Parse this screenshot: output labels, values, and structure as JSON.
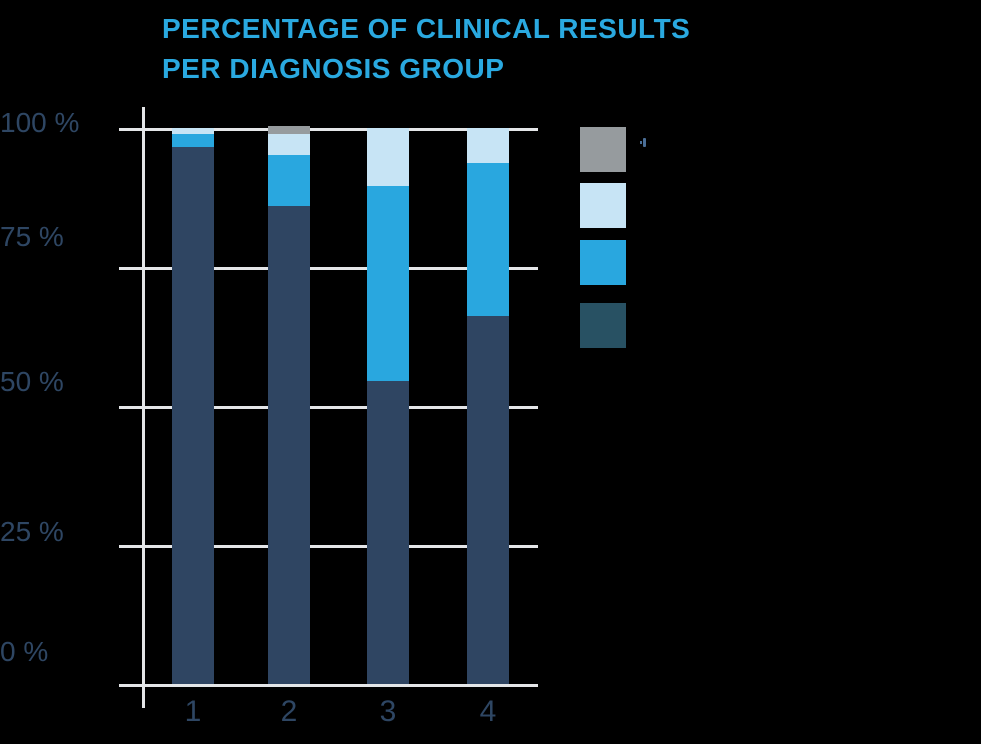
{
  "title": {
    "line1": "PERCENTAGE OF CLINICAL RESULTS",
    "line2": "PER DIAGNOSIS GROUP"
  },
  "colors": {
    "background": "#000000",
    "accent_blue": "#2AA9E0",
    "axis_text_navy": "#2E4663",
    "gridline_gray": "#E4E6E8",
    "bar_navy": "#2F4562",
    "bar_blue": "#29A7DF",
    "bar_light_blue": "#C7E4F5",
    "bar_gray": "#969B9E",
    "legend_navy": "#285163"
  },
  "legend": {
    "items": [
      {
        "name": "series-gray",
        "color_key": "bar_gray"
      },
      {
        "name": "series-light-blue",
        "color_key": "bar_light_blue"
      },
      {
        "name": "series-blue",
        "color_key": "bar_blue"
      },
      {
        "name": "series-navy",
        "color_key": "legend_navy"
      }
    ],
    "text_fragment": "ʼ"
  },
  "chart_data": {
    "type": "bar",
    "variant": "stacked-percentage",
    "title": "PERCENTAGE OF CLINICAL RESULTS PER DIAGNOSIS GROUP",
    "categories": [
      "1",
      "2",
      "3",
      "4"
    ],
    "series": [
      {
        "name": "series-navy",
        "color_key": "bar_navy",
        "values": [
          96.5,
          86.0,
          54.5,
          66.2
        ]
      },
      {
        "name": "series-blue",
        "color_key": "bar_blue",
        "values": [
          2.4,
          9.2,
          35.1,
          27.5
        ]
      },
      {
        "name": "series-light-blue",
        "color_key": "bar_light_blue",
        "values": [
          1.1,
          3.8,
          10.4,
          6.3
        ]
      },
      {
        "name": "series-gray",
        "color_key": "bar_gray",
        "values": [
          0,
          1.4,
          0,
          0
        ]
      }
    ],
    "xlabel": "",
    "ylabel": "",
    "ylim": [
      0,
      100
    ],
    "y_tick_labels": [
      "100 %",
      "75 %",
      "50 %",
      "25 %",
      "0 %"
    ],
    "y_tick_values": [
      100,
      75,
      50,
      25,
      0
    ],
    "grid": "horizontal",
    "legend_position": "right"
  }
}
